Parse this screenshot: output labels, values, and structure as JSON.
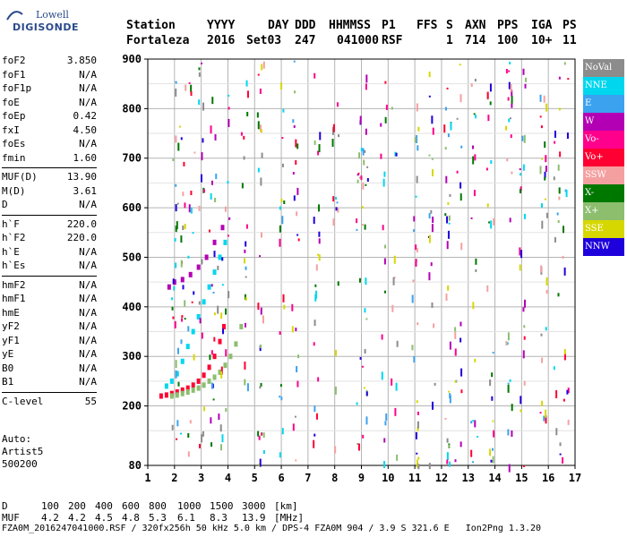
{
  "logo": {
    "line1": "Lowell",
    "line2": "DIGISONDE"
  },
  "header": {
    "labels": [
      "Station",
      "YYYY",
      "DAY",
      "DDD",
      "HHMMSS",
      "P1",
      "FFS",
      "S",
      "AXN",
      "PPS",
      "IGA",
      "PS"
    ],
    "values": [
      "Fortaleza",
      "2016",
      "Set03",
      "247",
      "041000",
      "RSF",
      "1",
      "714",
      "100",
      "10+",
      "11"
    ]
  },
  "params": [
    {
      "key": "foF2",
      "value": "3.850"
    },
    {
      "key": "foF1",
      "value": "N/A"
    },
    {
      "key": "foF1p",
      "value": "N/A"
    },
    {
      "key": "foE",
      "value": "N/A"
    },
    {
      "key": "foEp",
      "value": "0.42"
    },
    {
      "key": "fxI",
      "value": "4.50"
    },
    {
      "key": "foEs",
      "value": "N/A"
    },
    {
      "key": "fmin",
      "value": "1.60"
    },
    {
      "key": "MUF(D)",
      "value": "13.90",
      "sep": true
    },
    {
      "key": "M(D)",
      "value": "3.61"
    },
    {
      "key": "D",
      "value": "N/A"
    },
    {
      "key": "h`F",
      "value": "220.0",
      "sep": true
    },
    {
      "key": "h`F2",
      "value": "220.0"
    },
    {
      "key": "h`E",
      "value": "N/A"
    },
    {
      "key": "h`Es",
      "value": "N/A"
    },
    {
      "key": "hmF2",
      "value": "N/A",
      "sep": true
    },
    {
      "key": "hmF1",
      "value": "N/A"
    },
    {
      "key": "hmE",
      "value": "N/A"
    },
    {
      "key": "yF2",
      "value": "N/A"
    },
    {
      "key": "yF1",
      "value": "N/A"
    },
    {
      "key": "yE",
      "value": "N/A"
    },
    {
      "key": "B0",
      "value": "N/A"
    },
    {
      "key": "B1",
      "value": "N/A"
    },
    {
      "key": "C-level",
      "value": "55",
      "sep": true
    }
  ],
  "auto": [
    "Auto:",
    "Artist5",
    "500200"
  ],
  "legend": [
    {
      "label": "NoVal",
      "color": "#8c8c8c"
    },
    {
      "label": "NNE",
      "color": "#00d7ee"
    },
    {
      "label": "E",
      "color": "#3ba2f0"
    },
    {
      "label": "W",
      "color": "#b400b4"
    },
    {
      "label": "Vo-",
      "color": "#ff008c"
    },
    {
      "label": "Vo+",
      "color": "#ff0032"
    },
    {
      "label": "SSW",
      "color": "#f5a0a0"
    },
    {
      "label": "X-",
      "color": "#007800"
    },
    {
      "label": "X+",
      "color": "#8cbe6e"
    },
    {
      "label": "SSE",
      "color": "#d7d700"
    },
    {
      "label": "NNW",
      "color": "#1e00dc"
    }
  ],
  "footer": {
    "d_label": "D",
    "d_values": [
      "100",
      "200",
      "400",
      "600",
      "800",
      "1000",
      "1500",
      "3000",
      "[km]"
    ],
    "muf_label": "MUF",
    "muf_values": [
      "4.2",
      "4.2",
      "4.5",
      "4.8",
      "5.3",
      "6.1",
      "8.3",
      "13.9",
      "[MHz]"
    ],
    "info": "FZA0M_2016247041000.RSF / 320fx256h 50 kHz 5.0 km / DPS-4 FZA0M 904 / 3.9 S 321.6 E   Ion2Png 1.3.20"
  },
  "chart_data": {
    "type": "scatter",
    "xlim": [
      1,
      17
    ],
    "ylim": [
      80,
      900
    ],
    "x_ticks": [
      1,
      2,
      3,
      4,
      5,
      6,
      7,
      8,
      9,
      10,
      11,
      12,
      13,
      14,
      15,
      16,
      17
    ],
    "y_ticks": [
      80,
      200,
      300,
      400,
      500,
      600,
      700,
      800,
      900
    ],
    "grid": true,
    "traces": [
      {
        "name": "Vo+",
        "x": [
          1.5,
          1.7,
          1.9,
          2.1,
          2.3,
          2.5,
          2.7,
          2.9,
          3.1,
          3.3,
          3.5,
          3.7,
          3.85
        ],
        "y": [
          220,
          222,
          225,
          228,
          232,
          236,
          242,
          250,
          262,
          278,
          300,
          330,
          360
        ]
      },
      {
        "name": "X+",
        "x": [
          1.9,
          2.1,
          2.3,
          2.5,
          2.7,
          2.9,
          3.1,
          3.3,
          3.5,
          3.7,
          3.9,
          4.1,
          4.3,
          4.5
        ],
        "y": [
          220,
          222,
          225,
          228,
          232,
          236,
          242,
          250,
          258,
          268,
          282,
          300,
          325,
          360
        ]
      },
      {
        "name": "NNE",
        "x": [
          1.7,
          1.9,
          2.1,
          2.3,
          2.5,
          2.7,
          2.9,
          3.1,
          3.3,
          3.5,
          3.7,
          3.9
        ],
        "y": [
          240,
          250,
          265,
          290,
          320,
          350,
          380,
          410,
          440,
          470,
          500,
          530
        ]
      },
      {
        "name": "W",
        "x": [
          1.8,
          2.0,
          2.3,
          2.6,
          2.9,
          3.2,
          3.5,
          3.8
        ],
        "y": [
          440,
          450,
          455,
          465,
          480,
          500,
          530,
          560
        ]
      }
    ]
  }
}
